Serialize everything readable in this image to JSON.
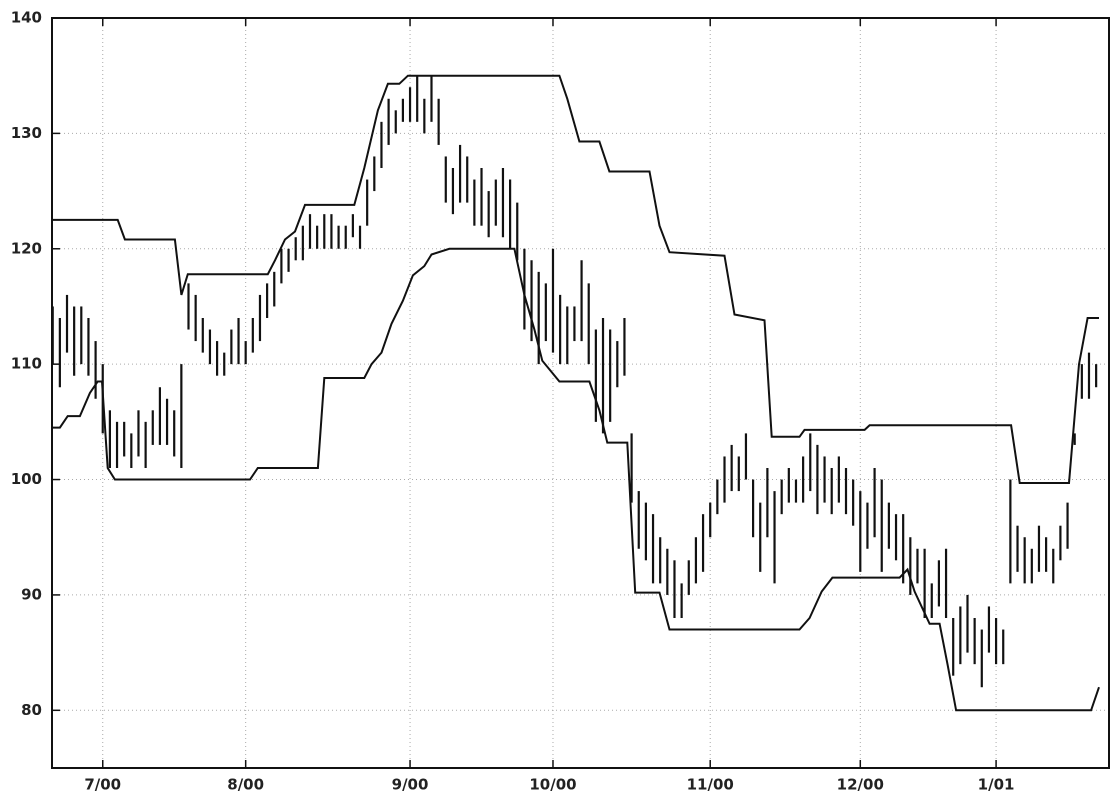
{
  "chart_data": {
    "type": "ohlc",
    "x": [
      -7,
      -6,
      -5,
      -4,
      -3,
      -2,
      -1,
      0,
      1,
      2,
      3,
      4,
      5,
      6,
      7,
      8,
      9,
      10,
      11,
      12,
      13,
      14,
      15,
      16,
      17,
      18,
      19,
      20,
      21,
      22,
      23,
      24,
      25,
      26,
      27,
      28,
      29,
      30,
      31,
      32,
      33,
      34,
      35,
      36,
      37,
      38,
      39,
      40,
      41,
      42,
      43,
      44,
      45,
      46,
      47,
      48,
      49,
      50,
      51,
      52,
      53,
      54,
      55,
      56,
      57,
      58,
      59,
      60,
      61,
      62,
      63,
      64,
      65,
      66,
      67,
      68,
      69,
      70,
      71,
      72,
      73,
      74,
      75,
      76,
      77,
      78,
      79,
      80,
      81,
      82,
      83,
      84,
      85,
      86,
      87,
      88,
      89,
      90,
      91,
      92,
      93,
      94,
      95,
      96,
      97,
      98,
      99,
      100,
      101,
      102,
      103,
      104,
      105,
      106,
      107,
      108,
      109,
      110,
      111,
      112,
      113,
      114,
      115,
      116,
      117,
      118,
      119,
      120,
      121,
      122,
      123,
      124,
      125,
      126,
      127,
      128,
      129,
      130,
      131,
      132,
      133,
      134,
      135,
      136,
      137,
      138,
      139
    ],
    "high": [
      115,
      114,
      116,
      115,
      115,
      114,
      112,
      110,
      106,
      105,
      105,
      104,
      106,
      105,
      106,
      108,
      107,
      106,
      110,
      117,
      116,
      114,
      113,
      112,
      111,
      113,
      114,
      112,
      114,
      116,
      117,
      118,
      120,
      120,
      121,
      122,
      123,
      122,
      123,
      123,
      122,
      122,
      123,
      122,
      126,
      128,
      131,
      133,
      132,
      133,
      134,
      135,
      133,
      135,
      133,
      128,
      127,
      129,
      128,
      126,
      127,
      125,
      126,
      127,
      126,
      124,
      120,
      119,
      118,
      117,
      120,
      116,
      115,
      115,
      119,
      117,
      113,
      114,
      113,
      112,
      114,
      104,
      99,
      98,
      97,
      95,
      94,
      93,
      91,
      93,
      95,
      97,
      98,
      100,
      102,
      103,
      102,
      104,
      100,
      98,
      101,
      99,
      100,
      101,
      100,
      102,
      104,
      103,
      102,
      101,
      102,
      101,
      100,
      99,
      98,
      101,
      100,
      98,
      97,
      97,
      95,
      94,
      94,
      91,
      93,
      94,
      88,
      89,
      90,
      88,
      87,
      89,
      88,
      87,
      100,
      96,
      95,
      94,
      96,
      95,
      94,
      96,
      98,
      104,
      110,
      111,
      110
    ],
    "low": [
      110,
      108,
      111,
      109,
      110,
      109,
      107,
      104,
      101,
      101,
      102,
      101,
      102,
      101,
      103,
      103,
      103,
      102,
      101,
      113,
      112,
      111,
      110,
      109,
      109,
      110,
      110,
      110,
      111,
      112,
      114,
      115,
      117,
      118,
      119,
      119,
      120,
      120,
      120,
      120,
      120,
      120,
      121,
      120,
      122,
      125,
      127,
      129,
      130,
      131,
      131,
      131,
      130,
      131,
      129,
      124,
      123,
      124,
      124,
      122,
      122,
      121,
      122,
      121,
      120,
      119,
      113,
      112,
      110,
      112,
      111,
      110,
      110,
      112,
      112,
      110,
      105,
      104,
      105,
      108,
      109,
      98,
      94,
      93,
      91,
      91,
      90,
      88,
      88,
      90,
      91,
      92,
      95,
      97,
      98,
      99,
      99,
      100,
      95,
      92,
      95,
      91,
      97,
      98,
      98,
      98,
      99,
      97,
      98,
      97,
      98,
      97,
      96,
      92,
      94,
      95,
      92,
      94,
      93,
      91,
      90,
      91,
      88,
      88,
      89,
      88,
      83,
      84,
      85,
      84,
      82,
      85,
      84,
      84,
      91,
      92,
      91,
      91,
      92,
      92,
      91,
      93,
      94,
      103,
      107,
      107,
      108
    ],
    "lines": [
      {
        "x": [
          -7,
          2.1,
          3.1,
          10.1,
          11,
          11.9,
          23.1,
          24.1,
          25.5,
          26.9,
          28.3,
          35.2,
          36.6,
          38.5,
          39.9,
          41.5,
          42.7,
          63.9,
          65,
          66.7,
          69.5,
          70.9,
          76.5,
          77.9,
          79.3,
          87,
          88.4,
          92.6,
          93.6,
          97.5,
          98.2,
          106.6,
          107.3,
          127.1,
          128.3,
          135.2,
          136.6,
          137.8,
          139.4
        ],
        "y": [
          122.5,
          122.5,
          120.8,
          120.8,
          116,
          117.8,
          117.8,
          119,
          120.8,
          121.5,
          123.8,
          123.8,
          127,
          132,
          134.3,
          134.3,
          135,
          135,
          133,
          129.3,
          129.3,
          126.7,
          126.7,
          122,
          119.7,
          119.4,
          114.3,
          113.8,
          103.7,
          103.7,
          104.3,
          104.3,
          104.7,
          104.7,
          99.7,
          99.7,
          110,
          114,
          114
        ]
      },
      {
        "x": [
          -7,
          -6,
          -4.9,
          -3.2,
          -1.8,
          -0.7,
          -0.1,
          0.7,
          1.7,
          20.6,
          21.7,
          30.1,
          31,
          36.6,
          37.6,
          39,
          40.4,
          42,
          43.4,
          45,
          46,
          48.5,
          57.6,
          59,
          60.4,
          61.5,
          63.9,
          68.1,
          69.5,
          70.6,
          73.4,
          74.5,
          77.9,
          79.3,
          97.5,
          98.9,
          100.6,
          102.1,
          111.5,
          112.6,
          113.6,
          115.7,
          117.1,
          118.2,
          119.4,
          138.3,
          139.4
        ],
        "y": [
          104.5,
          104.5,
          105.5,
          105.5,
          107.5,
          108.5,
          108.5,
          101,
          100,
          100,
          101,
          101,
          108.8,
          108.8,
          110,
          111,
          113.5,
          115.5,
          117.7,
          118.5,
          119.5,
          120,
          120,
          116,
          113,
          110.3,
          108.5,
          108.5,
          106,
          103.2,
          103.2,
          90.2,
          90.2,
          87,
          87,
          88,
          90.3,
          91.5,
          91.5,
          92.2,
          90.3,
          87.5,
          87.5,
          84,
          80,
          80,
          82
        ]
      }
    ],
    "color": "#111111",
    "xlim": [
      -7.1,
      140.8
    ],
    "ylim": [
      75,
      140
    ],
    "xticks": [
      {
        "value": 0,
        "label": "7/00"
      },
      {
        "value": 20,
        "label": "8/00"
      },
      {
        "value": 43,
        "label": "9/00"
      },
      {
        "value": 63,
        "label": "10/00"
      },
      {
        "value": 85,
        "label": "11/00"
      },
      {
        "value": 106,
        "label": "12/00"
      },
      {
        "value": 125,
        "label": "1/01"
      }
    ],
    "yticks": [
      80,
      90,
      100,
      110,
      120,
      130,
      140
    ],
    "grid": true
  }
}
